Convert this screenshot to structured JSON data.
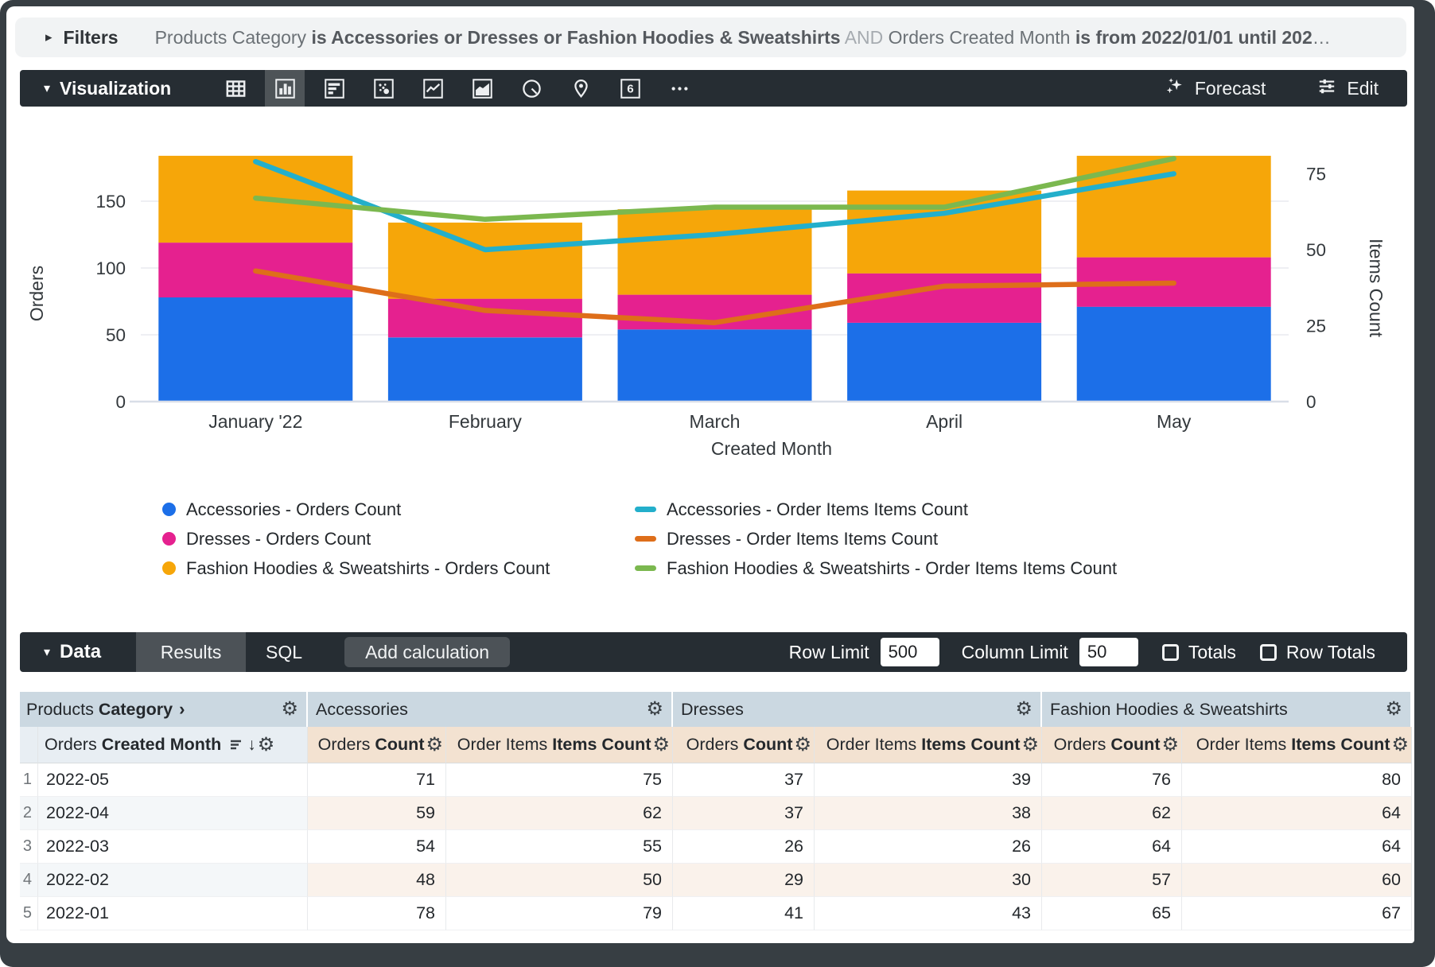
{
  "colors": {
    "frame": "#373E43",
    "toolbar_bg": "#262D33",
    "toolbar_selected_tile": "#4E5458",
    "filters_bg": "#F1F3F4",
    "group_header_bg": "#CBD8E1",
    "dim_subheader_bg": "#E8EEF3",
    "measure_subheader_bg": "#F3E2D1",
    "even_row_dim_tint": "#F4F7F9",
    "even_row_measure_tint": "#FAF2EB"
  },
  "glyphs": {
    "gear": "⚙",
    "caret_down": "▾",
    "caret_right": "▸",
    "arrow_down": "↓",
    "chevron_right": "›",
    "ellipsis": "…"
  },
  "filters": {
    "label": "Filters",
    "segments": [
      {
        "text": "Products Category ",
        "style": "normal"
      },
      {
        "text": "is Accessories or Dresses or Fashion Hoodies & Sweatshirts",
        "style": "bold"
      },
      {
        "text": " AND ",
        "style": "dim"
      },
      {
        "text": "Orders Created Month ",
        "style": "normal"
      },
      {
        "text": "is from 2022/01/01 until 2022/…",
        "style": "bold"
      }
    ]
  },
  "viz": {
    "label": "Visualization",
    "icons": [
      {
        "name": "table",
        "selected": false
      },
      {
        "name": "column",
        "selected": true
      },
      {
        "name": "bar",
        "selected": false
      },
      {
        "name": "scatter",
        "selected": false
      },
      {
        "name": "line",
        "selected": false
      },
      {
        "name": "area",
        "selected": false
      },
      {
        "name": "pie",
        "selected": false
      },
      {
        "name": "map",
        "selected": false
      },
      {
        "name": "single-value",
        "selected": false,
        "glyph": "6"
      },
      {
        "name": "more",
        "selected": false
      }
    ],
    "forecast_label": "Forecast",
    "edit_label": "Edit"
  },
  "chart_data": {
    "type": "combo: stacked bar + line, dual axis",
    "categories": [
      "January '22",
      "February",
      "March",
      "April",
      "May"
    ],
    "bar_series": [
      {
        "name": "Accessories - Orders Count",
        "color": "#1C6FE8",
        "values": [
          78,
          48,
          54,
          59,
          71
        ]
      },
      {
        "name": "Dresses - Orders Count",
        "color": "#E5218F",
        "values": [
          41,
          29,
          26,
          37,
          37
        ]
      },
      {
        "name": "Fashion Hoodies & Sweatshirts - Orders Count",
        "color": "#F6A609",
        "values": [
          65,
          57,
          64,
          62,
          76
        ]
      }
    ],
    "line_series": [
      {
        "name": "Accessories - Order Items Items Count",
        "color": "#23AFCB",
        "values": [
          79,
          50,
          55,
          62,
          75
        ]
      },
      {
        "name": "Dresses - Order Items Items Count",
        "color": "#DE6E1A",
        "values": [
          43,
          30,
          26,
          38,
          39
        ]
      },
      {
        "name": "Fashion Hoodies & Sweatshirts - Order Items Items Count",
        "color": "#7BB84F",
        "values": [
          67,
          60,
          64,
          64,
          80
        ]
      }
    ],
    "left_axis": {
      "title": "Orders",
      "ticks": [
        0,
        50,
        100,
        150
      ],
      "range": [
        0,
        211
      ]
    },
    "right_axis": {
      "title": "Items Count",
      "ticks": [
        0,
        25,
        50,
        75
      ],
      "range": [
        0,
        93
      ]
    },
    "xlabel": "Created Month",
    "grid": true,
    "legend_position": "bottom"
  },
  "legend": {
    "left": [
      {
        "label": "Accessories - Orders Count",
        "color": "#1C6FE8",
        "marker": "circle"
      },
      {
        "label": "Dresses - Orders Count",
        "color": "#E5218F",
        "marker": "circle"
      },
      {
        "label": "Fashion Hoodies & Sweatshirts - Orders Count",
        "color": "#F6A609",
        "marker": "circle"
      }
    ],
    "right": [
      {
        "label": "Accessories - Order Items Items Count",
        "color": "#23AFCB",
        "marker": "dash"
      },
      {
        "label": "Dresses - Order Items Items Count",
        "color": "#DE6E1A",
        "marker": "dash"
      },
      {
        "label": "Fashion Hoodies & Sweatshirts - Order Items Items Count",
        "color": "#7BB84F",
        "marker": "dash"
      }
    ]
  },
  "data_panel": {
    "label": "Data",
    "tabs": [
      {
        "label": "Results",
        "selected": true
      },
      {
        "label": "SQL",
        "selected": false
      }
    ],
    "add_calculation_label": "Add calculation",
    "row_limit_label": "Row Limit",
    "row_limit_value": "500",
    "column_limit_label": "Column Limit",
    "column_limit_value": "50",
    "totals_label": "Totals",
    "totals_checked": false,
    "row_totals_label": "Row Totals",
    "row_totals_checked": false
  },
  "table": {
    "dimension_group_header": {
      "normal": "Products",
      "bold": "Category"
    },
    "dimension_subheader": {
      "normal": "Orders",
      "bold": "Created Month"
    },
    "groups": [
      "Accessories",
      "Dresses",
      "Fashion Hoodies & Sweatshirts"
    ],
    "measure_headers": [
      {
        "normal": "Orders",
        "bold": "Count"
      },
      {
        "normal": "Order Items",
        "bold": "Items Count"
      }
    ],
    "rows": [
      {
        "n": "1",
        "month": "2022-05",
        "values": [
          "71",
          "75",
          "37",
          "39",
          "76",
          "80"
        ]
      },
      {
        "n": "2",
        "month": "2022-04",
        "values": [
          "59",
          "62",
          "37",
          "38",
          "62",
          "64"
        ]
      },
      {
        "n": "3",
        "month": "2022-03",
        "values": [
          "54",
          "55",
          "26",
          "26",
          "64",
          "64"
        ]
      },
      {
        "n": "4",
        "month": "2022-02",
        "values": [
          "48",
          "50",
          "29",
          "30",
          "57",
          "60"
        ]
      },
      {
        "n": "5",
        "month": "2022-01",
        "values": [
          "78",
          "79",
          "41",
          "43",
          "65",
          "67"
        ]
      }
    ]
  }
}
